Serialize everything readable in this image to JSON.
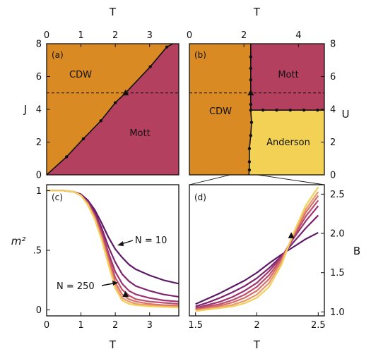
{
  "colors": {
    "cdw": "#DA8A23",
    "mott": "#B4405F",
    "anderson": "#F2D155",
    "boundary": "#111111"
  },
  "chart_data": [
    {
      "panel": "a",
      "type": "area",
      "panel_label": "(a)",
      "xlabel": "T",
      "ylabel": "J",
      "xlim": [
        0,
        3.85
      ],
      "ylim": [
        0,
        8
      ],
      "xticks": [
        "0",
        "1",
        "2",
        "3"
      ],
      "yticks": [
        "0",
        "2",
        "4",
        "6",
        "8"
      ],
      "regions": [
        "CDW",
        "Mott"
      ],
      "boundary": {
        "x": [
          0,
          0.58,
          1.07,
          1.58,
          2.0,
          2.3,
          3.02,
          3.5,
          3.68
        ],
        "y": [
          0,
          1.1,
          2.2,
          3.3,
          4.4,
          5.0,
          6.6,
          7.8,
          8.0
        ]
      },
      "dashed_level": 5,
      "triangle": {
        "x": 2.3,
        "y": 5.0
      }
    },
    {
      "panel": "b",
      "type": "area",
      "panel_label": "(b)",
      "xlabel": "T",
      "ylabel": "U",
      "xlim": [
        0,
        4.95
      ],
      "ylim": [
        0,
        8
      ],
      "xticks": [
        "0",
        "2",
        "4"
      ],
      "yticks": [
        "0",
        "2",
        "4",
        "6",
        "8"
      ],
      "regions": [
        "CDW",
        "Mott",
        "Anderson"
      ],
      "boundary": {
        "x": [
          2.25,
          2.25,
          2.25,
          2.25,
          2.25,
          2.25,
          2.25,
          2.28,
          2.25,
          2.2,
          2.2,
          2.2,
          2.18
        ],
        "y": [
          8,
          7.2,
          6.5,
          5.8,
          5.0,
          4.3,
          3.95,
          3.2,
          2.4,
          1.6,
          0.8,
          0.3,
          0
        ]
      },
      "mott_anderson_boundary": {
        "x": [
          2.28,
          2.7,
          3.2,
          3.7,
          4.2,
          4.7,
          4.95
        ],
        "y": [
          3.95,
          3.95,
          3.95,
          3.95,
          3.95,
          3.95,
          3.95
        ]
      },
      "dashed_level": 5,
      "triangle": {
        "x": 2.25,
        "y": 5.0
      }
    },
    {
      "panel": "c",
      "type": "line",
      "panel_label": "(c)",
      "xlabel": "T",
      "ylabel": "m²",
      "xlim": [
        0,
        3.85
      ],
      "ylim": [
        -0.05,
        1.05
      ],
      "xticks": [
        "0",
        "1",
        "2",
        "3"
      ],
      "yticks": [
        "0",
        ".5",
        "1"
      ],
      "annotations": [
        "N = 10",
        "N = 250"
      ],
      "x": [
        0.0,
        0.5,
        0.8,
        1.0,
        1.2,
        1.4,
        1.6,
        1.8,
        2.0,
        2.2,
        2.4,
        2.6,
        3.0,
        3.4,
        3.85
      ],
      "series": [
        {
          "values": [
            1.0,
            1.0,
            0.99,
            0.97,
            0.92,
            0.84,
            0.73,
            0.61,
            0.51,
            0.44,
            0.38,
            0.34,
            0.29,
            0.25,
            0.22
          ]
        },
        {
          "values": [
            1.0,
            1.0,
            0.99,
            0.97,
            0.91,
            0.82,
            0.69,
            0.53,
            0.4,
            0.3,
            0.24,
            0.2,
            0.16,
            0.13,
            0.11
          ]
        },
        {
          "values": [
            1.0,
            1.0,
            0.99,
            0.96,
            0.9,
            0.8,
            0.66,
            0.48,
            0.32,
            0.22,
            0.16,
            0.13,
            0.1,
            0.08,
            0.07
          ]
        },
        {
          "values": [
            1.0,
            1.0,
            0.99,
            0.96,
            0.9,
            0.79,
            0.64,
            0.45,
            0.27,
            0.17,
            0.12,
            0.09,
            0.07,
            0.06,
            0.05
          ]
        },
        {
          "values": [
            1.0,
            1.0,
            0.99,
            0.96,
            0.89,
            0.78,
            0.62,
            0.42,
            0.23,
            0.13,
            0.09,
            0.07,
            0.05,
            0.04,
            0.035
          ]
        },
        {
          "values": [
            1.0,
            1.0,
            0.99,
            0.96,
            0.89,
            0.77,
            0.6,
            0.4,
            0.2,
            0.1,
            0.07,
            0.05,
            0.04,
            0.03,
            0.025
          ]
        },
        {
          "values": [
            1.0,
            1.0,
            0.99,
            0.96,
            0.88,
            0.76,
            0.59,
            0.38,
            0.18,
            0.08,
            0.05,
            0.04,
            0.03,
            0.025,
            0.02
          ]
        }
      ],
      "triangle": {
        "x": 2.3,
        "y": 0.13
      }
    },
    {
      "panel": "d",
      "type": "line",
      "panel_label": "(d)",
      "xlabel": "T",
      "ylabel": "B",
      "xlim": [
        1.45,
        2.55
      ],
      "ylim": [
        0.95,
        2.62
      ],
      "xticks": [
        "1.5",
        "2",
        "2.5"
      ],
      "yticks": [
        "1.0",
        "1.5",
        "2.0",
        "2.5"
      ],
      "x": [
        1.5,
        1.6,
        1.7,
        1.8,
        1.9,
        2.0,
        2.1,
        2.2,
        2.3,
        2.4,
        2.5
      ],
      "series": [
        {
          "values": [
            1.1,
            1.17,
            1.24,
            1.32,
            1.4,
            1.5,
            1.62,
            1.73,
            1.83,
            1.93,
            2.01
          ]
        },
        {
          "values": [
            1.07,
            1.12,
            1.18,
            1.25,
            1.33,
            1.43,
            1.56,
            1.71,
            1.89,
            2.07,
            2.23
          ]
        },
        {
          "values": [
            1.05,
            1.09,
            1.13,
            1.19,
            1.27,
            1.37,
            1.52,
            1.7,
            1.94,
            2.16,
            2.35
          ]
        },
        {
          "values": [
            1.04,
            1.07,
            1.1,
            1.15,
            1.22,
            1.32,
            1.47,
            1.68,
            1.96,
            2.22,
            2.42
          ]
        },
        {
          "values": [
            1.03,
            1.05,
            1.08,
            1.12,
            1.18,
            1.27,
            1.42,
            1.66,
            1.98,
            2.27,
            2.48
          ]
        },
        {
          "values": [
            1.02,
            1.04,
            1.06,
            1.09,
            1.14,
            1.22,
            1.37,
            1.63,
            2.0,
            2.31,
            2.53
          ]
        },
        {
          "values": [
            1.01,
            1.03,
            1.05,
            1.07,
            1.11,
            1.18,
            1.32,
            1.6,
            2.01,
            2.36,
            2.59
          ]
        }
      ],
      "triangle": {
        "x": 2.28,
        "y": 1.97
      }
    }
  ],
  "line_colors": [
    "#5C1A66",
    "#7D2370",
    "#9E3470",
    "#BD4E6C",
    "#D8706A",
    "#EA9A6A",
    "#F5CF5C"
  ]
}
